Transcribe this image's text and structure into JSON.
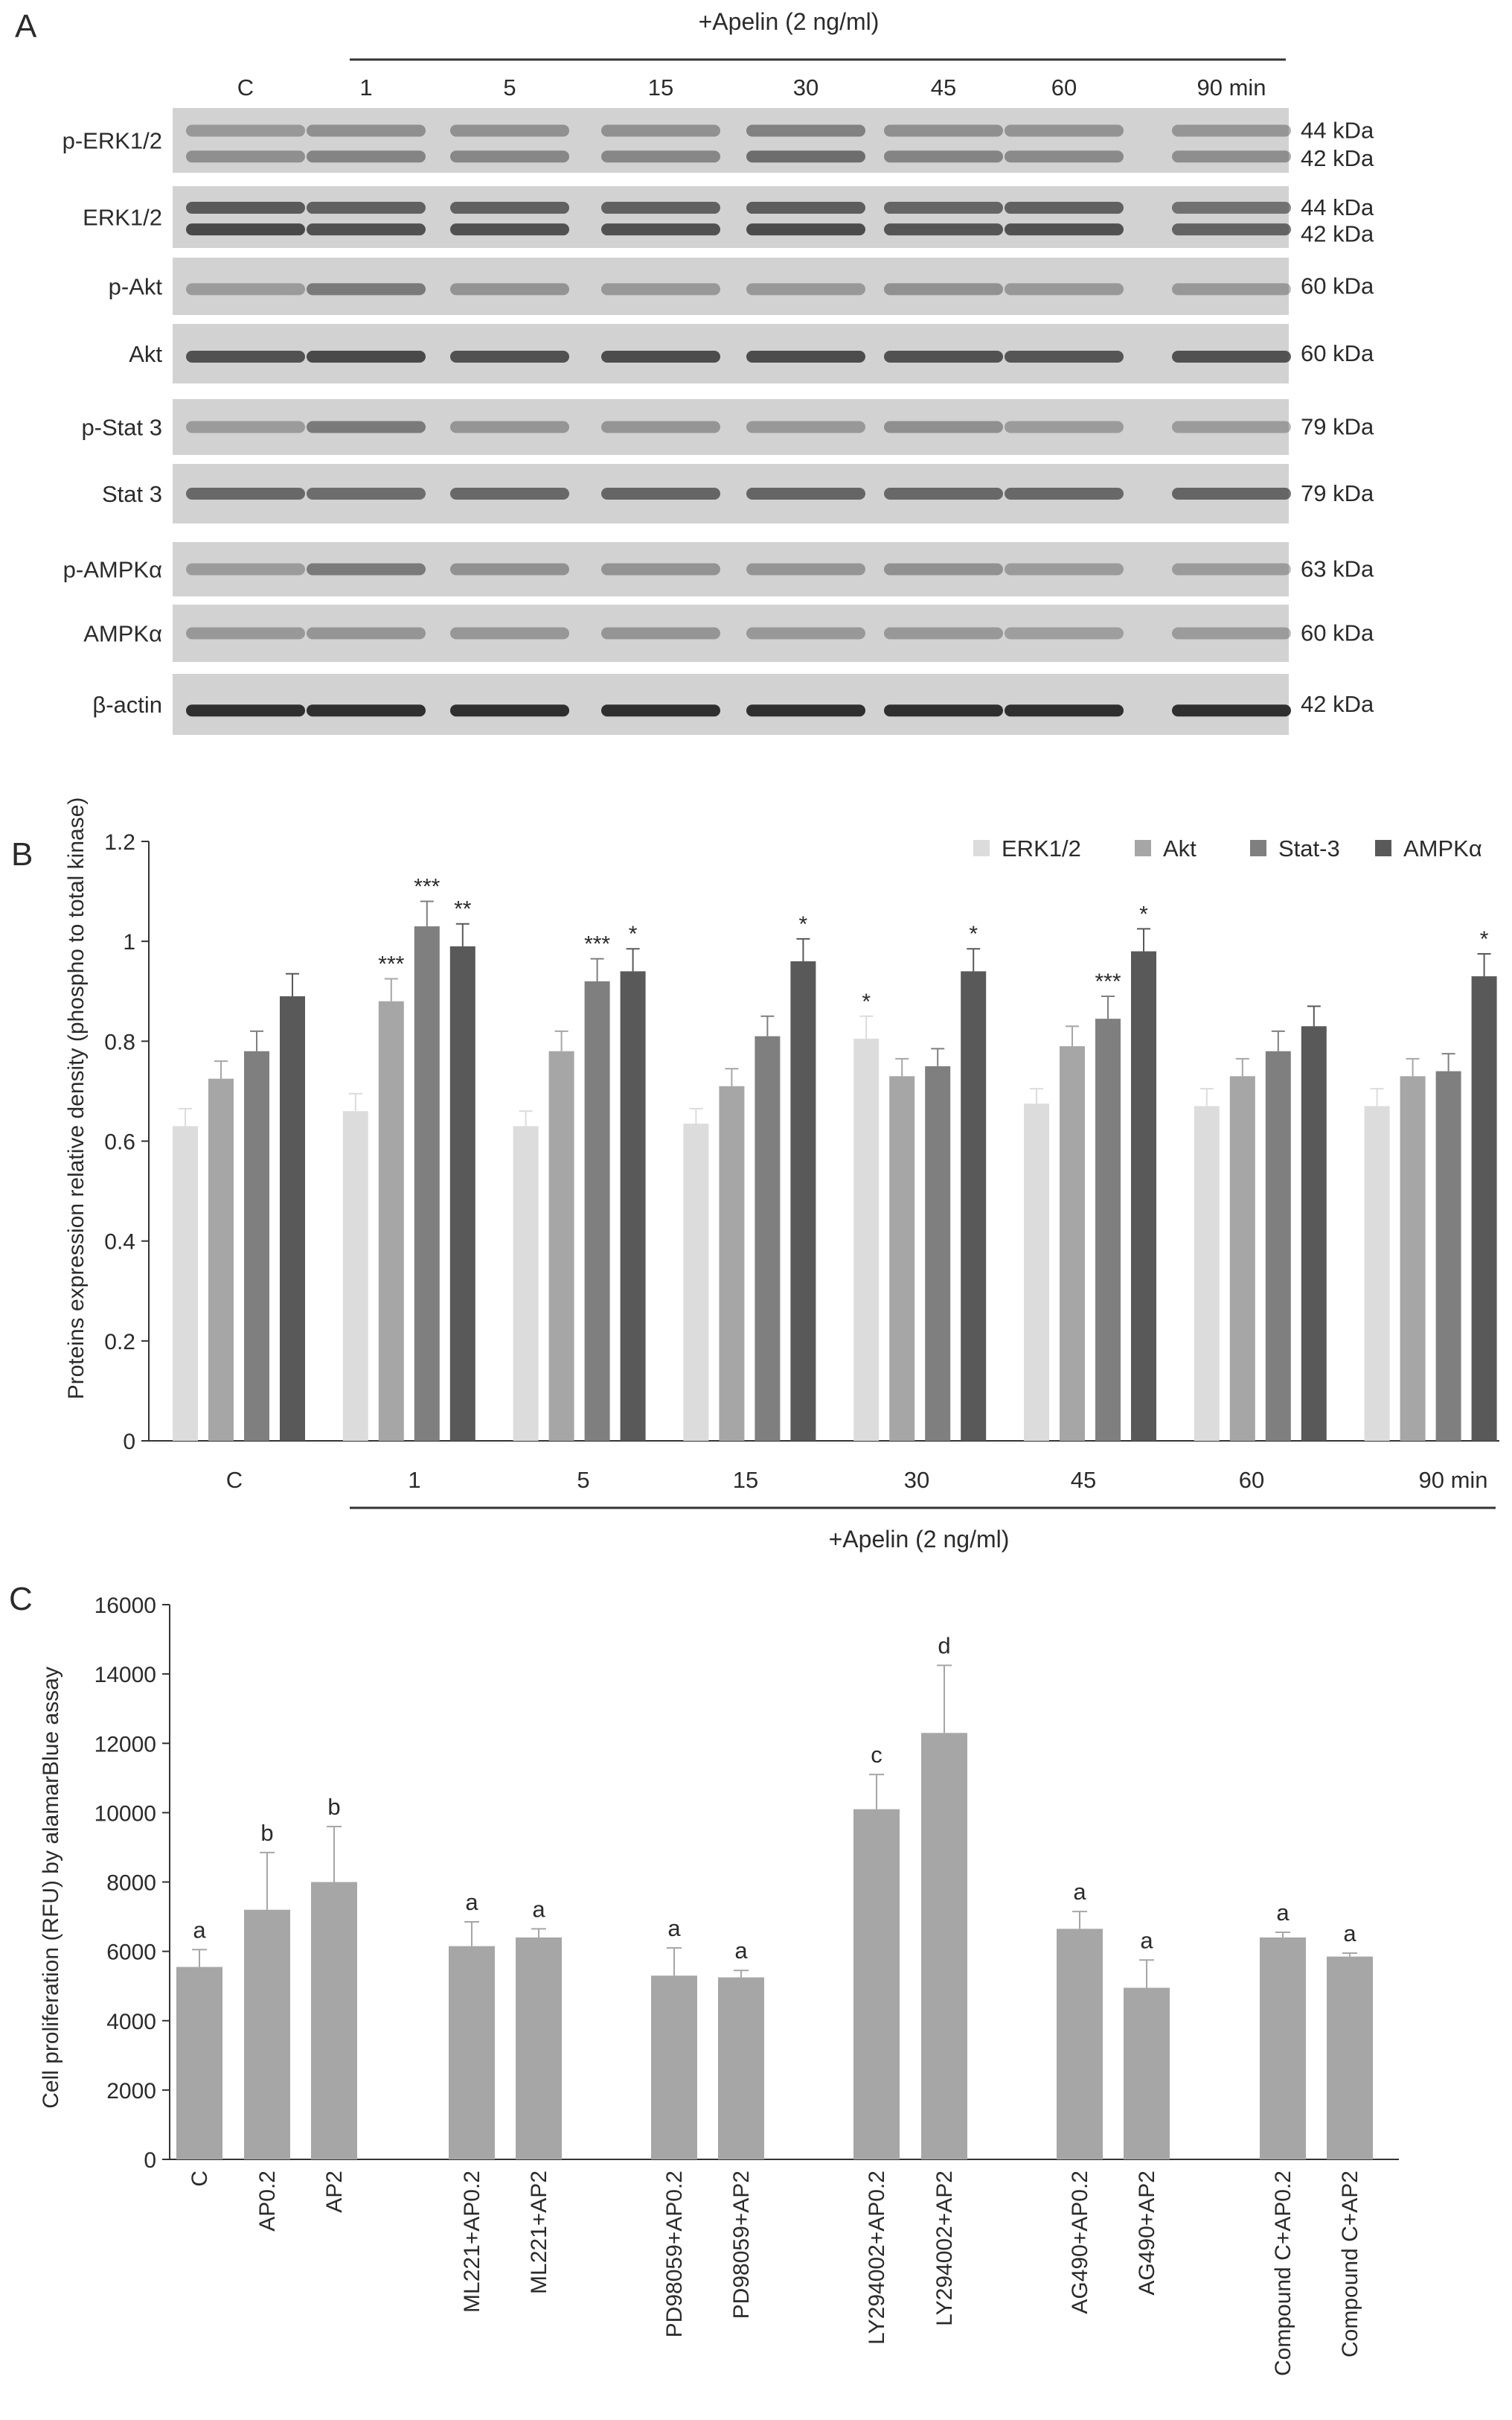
{
  "panel_labels": {
    "a": "A",
    "b": "B",
    "c": "C"
  },
  "blot": {
    "treatment_label": "+Apelin (2 ng/ml)",
    "lanes": [
      "C",
      "1",
      "5",
      "15",
      "30",
      "45",
      "60",
      "90 min"
    ],
    "rows": [
      {
        "label": "p-ERK1/2",
        "sizes": [
          "44 kDa",
          "42 kDa"
        ]
      },
      {
        "label": "ERK1/2",
        "sizes": [
          "44 kDa",
          "42 kDa"
        ]
      },
      {
        "label": "p-Akt",
        "sizes": [
          "60 kDa"
        ]
      },
      {
        "label": "Akt",
        "sizes": [
          "60 kDa"
        ]
      },
      {
        "label": "p-Stat 3",
        "sizes": [
          "79 kDa"
        ]
      },
      {
        "label": "Stat 3",
        "sizes": [
          "79 kDa"
        ]
      },
      {
        "label": "p-AMPKα",
        "sizes": [
          "63 kDa"
        ]
      },
      {
        "label": "AMPKα",
        "sizes": [
          "60 kDa"
        ]
      },
      {
        "label": "β-actin",
        "sizes": [
          "42 kDa"
        ]
      }
    ]
  },
  "chart_data": [
    {
      "type": "bar",
      "panel": "B",
      "categories": [
        "C",
        "1",
        "5",
        "15",
        "30",
        "45",
        "60",
        "90 min"
      ],
      "series": [
        {
          "name": "ERK1/2",
          "color": "#dcdcdc",
          "values": [
            0.63,
            0.66,
            0.63,
            0.635,
            0.805,
            0.675,
            0.67,
            0.67
          ],
          "errors": [
            0.035,
            0.035,
            0.03,
            0.03,
            0.045,
            0.03,
            0.035,
            0.035
          ],
          "annotations": [
            "",
            "",
            "",
            "",
            "*",
            "",
            "",
            ""
          ]
        },
        {
          "name": "Akt",
          "color": "#a6a6a6",
          "values": [
            0.725,
            0.88,
            0.78,
            0.71,
            0.73,
            0.79,
            0.73,
            0.73
          ],
          "errors": [
            0.035,
            0.045,
            0.04,
            0.035,
            0.035,
            0.04,
            0.035,
            0.035
          ],
          "annotations": [
            "",
            "***",
            "",
            "",
            "",
            "",
            "",
            ""
          ]
        },
        {
          "name": "Stat-3",
          "color": "#7f7f7f",
          "values": [
            0.78,
            1.03,
            0.92,
            0.81,
            0.75,
            0.845,
            0.78,
            0.74
          ],
          "errors": [
            0.04,
            0.05,
            0.045,
            0.04,
            0.035,
            0.045,
            0.04,
            0.035
          ],
          "annotations": [
            "",
            "***",
            "***",
            "",
            "",
            "***",
            "",
            ""
          ]
        },
        {
          "name": "AMPKα",
          "color": "#595959",
          "values": [
            0.89,
            0.99,
            0.94,
            0.96,
            0.94,
            0.98,
            0.83,
            0.93
          ],
          "errors": [
            0.045,
            0.045,
            0.045,
            0.045,
            0.045,
            0.045,
            0.04,
            0.045
          ],
          "annotations": [
            "",
            "**",
            "*",
            "*",
            "*",
            "*",
            "",
            "*"
          ]
        }
      ],
      "ylabel": "Proteins expression relative density (phospho to total kinase)",
      "ylim": [
        0,
        1.2
      ],
      "yticks": [
        "0",
        "0.2",
        "0.4",
        "0.6",
        "0.8",
        "1",
        "1.2"
      ],
      "treatment_label": "+Apelin (2 ng/ml)",
      "legend": "top-right",
      "grid": false
    },
    {
      "type": "bar",
      "panel": "C",
      "groups": [
        [
          "C",
          "AP0.2",
          "AP2"
        ],
        [
          "ML221+AP0.2",
          "ML221+AP2"
        ],
        [
          "PD98059+AP0.2",
          "PD98059+AP2"
        ],
        [
          "LY294002+AP0.2",
          "LY294002+AP2"
        ],
        [
          "AG490+AP0.2",
          "AG490+AP2"
        ],
        [
          "Compound C+AP0.2",
          "Compound C+AP2"
        ]
      ],
      "categories": [
        "C",
        "AP0.2",
        "AP2",
        "ML221+AP0.2",
        "ML221+AP2",
        "PD98059+AP0.2",
        "PD98059+AP2",
        "LY294002+AP0.2",
        "LY294002+AP2",
        "AG490+AP0.2",
        "AG490+AP2",
        "Compound C+AP0.2",
        "Compound C+AP2"
      ],
      "values": [
        5550,
        7200,
        8000,
        6150,
        6400,
        5300,
        5250,
        10100,
        12300,
        6650,
        4950,
        6400,
        5850
      ],
      "errors": [
        500,
        1650,
        1600,
        700,
        250,
        800,
        200,
        1000,
        1950,
        500,
        800,
        150,
        100
      ],
      "letters": [
        "a",
        "b",
        "b",
        "a",
        "a",
        "a",
        "a",
        "c",
        "d",
        "a",
        "a",
        "a",
        "a"
      ],
      "color": "#a6a6a6",
      "ylabel": "Cell proliferation (RFU) by alamarBlue assay",
      "ylim": [
        0,
        16000
      ],
      "yticks": [
        "0",
        "2000",
        "4000",
        "6000",
        "8000",
        "10000",
        "12000",
        "14000",
        "16000"
      ],
      "grid": false
    }
  ]
}
